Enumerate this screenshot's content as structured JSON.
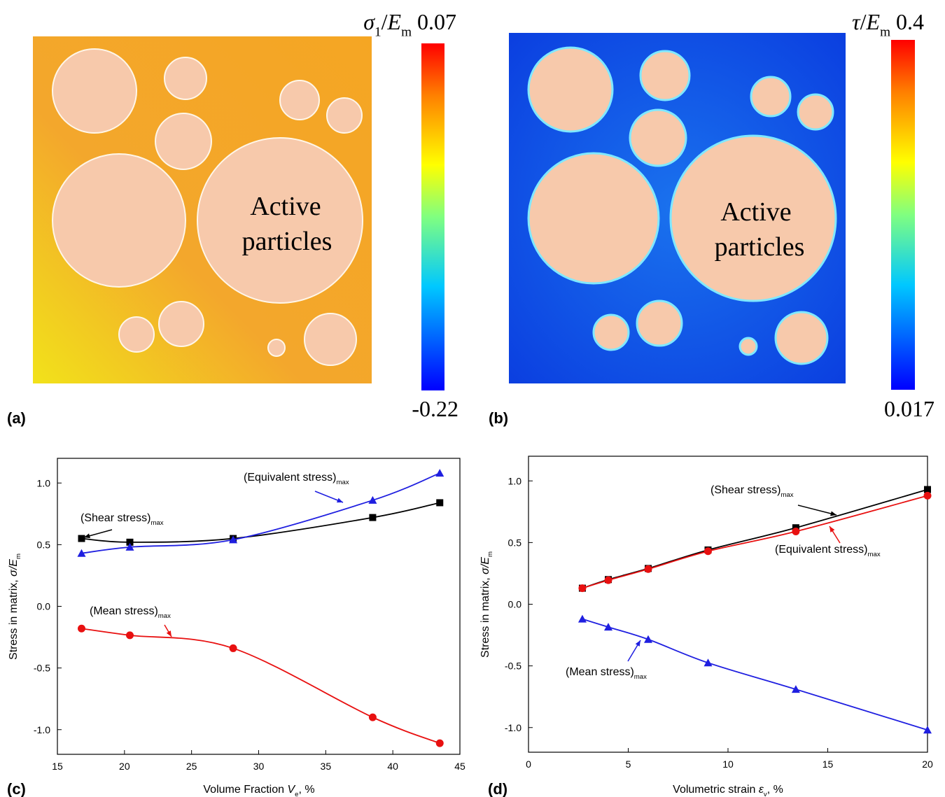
{
  "panels": [
    {
      "label": "(a)",
      "annotation": [
        "Active",
        "particles"
      ],
      "colorbar": {
        "title": [
          {
            "text": "σ",
            "italic": true
          },
          {
            "text": "1",
            "sub": true
          },
          {
            "text": "/"
          },
          {
            "text": "E",
            "italic": true
          },
          {
            "text": "m",
            "sub": true
          }
        ],
        "max": "0.07",
        "min": "-0.22"
      }
    },
    {
      "label": "(b)",
      "annotation": [
        "Active",
        "particles"
      ],
      "colorbar": {
        "title": [
          {
            "text": "τ",
            "italic": true
          },
          {
            "text": "/"
          },
          {
            "text": "E",
            "italic": true
          },
          {
            "text": "m",
            "sub": true
          }
        ],
        "max": "0.4",
        "min": "0.017"
      }
    }
  ],
  "chart_data": [
    {
      "type": "line",
      "panel_label": "(c)",
      "x_label": [
        {
          "text": "Volume Fraction "
        },
        {
          "text": "V",
          "italic": true
        },
        {
          "text": "e",
          "sub": true
        },
        {
          "text": ", %"
        }
      ],
      "y_label": [
        {
          "text": "Stress in matrix, "
        },
        {
          "text": "σ/E",
          "italic": true
        },
        {
          "text": "m",
          "sub": true
        }
      ],
      "xlim": [
        15,
        45
      ],
      "xticks": [
        15,
        20,
        25,
        30,
        35,
        40,
        45
      ],
      "ylim": [
        -1.2,
        1.2
      ],
      "yticks": [
        {
          "value": -1,
          "label": "-1.0"
        },
        {
          "value": -0.5,
          "label": "-0.5"
        },
        {
          "value": 0,
          "label": "0.0"
        },
        {
          "value": 0.5,
          "label": "0.5"
        },
        {
          "value": 1,
          "label": "1.0"
        }
      ],
      "series": [
        {
          "label": [
            {
              "text": "(Shear stress)"
            },
            {
              "text": "max",
              "sub": true
            }
          ],
          "color": "#000000",
          "marker": "square",
          "x": [
            16.8,
            20.4,
            28.1,
            38.5,
            43.5
          ],
          "values": [
            0.55,
            0.52,
            0.55,
            0.72,
            0.84
          ]
        },
        {
          "label": [
            {
              "text": "(Equivalent stress)"
            },
            {
              "text": "max",
              "sub": true
            }
          ],
          "color": "#1f1fe0",
          "marker": "triangle",
          "x": [
            16.8,
            20.4,
            28.1,
            38.5,
            43.5
          ],
          "values": [
            0.43,
            0.48,
            0.54,
            0.86,
            1.08
          ]
        },
        {
          "label": [
            {
              "text": "(Mean stress)"
            },
            {
              "text": "max",
              "sub": true
            }
          ],
          "color": "#e81010",
          "marker": "circle",
          "x": [
            16.8,
            20.4,
            28.1,
            38.5,
            43.5
          ],
          "values": [
            -0.18,
            -0.235,
            -0.34,
            -0.9,
            -1.11
          ]
        }
      ]
    },
    {
      "type": "line",
      "panel_label": "(d)",
      "x_label": [
        {
          "text": "Volumetric strain "
        },
        {
          "text": "ε",
          "italic": true
        },
        {
          "text": "v",
          "sub": true
        },
        {
          "text": ", %"
        }
      ],
      "y_label": [
        {
          "text": "Stress in matrix, "
        },
        {
          "text": "σ/E",
          "italic": true
        },
        {
          "text": "m",
          "sub": true
        }
      ],
      "xlim": [
        0,
        20
      ],
      "xticks": [
        0,
        5,
        10,
        15,
        20
      ],
      "ylim": [
        -1.2,
        1.2
      ],
      "yticks": [
        {
          "value": -1,
          "label": "-1.0"
        },
        {
          "value": -0.5,
          "label": "-0.5"
        },
        {
          "value": 0,
          "label": "0.0"
        },
        {
          "value": 0.5,
          "label": "0.5"
        },
        {
          "value": 1,
          "label": "1.0"
        }
      ],
      "series": [
        {
          "label": [
            {
              "text": "(Shear stress)"
            },
            {
              "text": "max",
              "sub": true
            }
          ],
          "color": "#000000",
          "marker": "square",
          "x": [
            2.7,
            4,
            6,
            9,
            13.4,
            20
          ],
          "values": [
            0.13,
            0.2,
            0.29,
            0.44,
            0.62,
            0.93
          ]
        },
        {
          "label": [
            {
              "text": "(Equivalent stress)"
            },
            {
              "text": "max",
              "sub": true
            }
          ],
          "color": "#e81010",
          "marker": "circle",
          "x": [
            2.7,
            4,
            6,
            9,
            13.4,
            20
          ],
          "values": [
            0.13,
            0.195,
            0.285,
            0.43,
            0.59,
            0.88
          ]
        },
        {
          "label": [
            {
              "text": "(Mean stress)"
            },
            {
              "text": "max",
              "sub": true
            }
          ],
          "color": "#1f1fe0",
          "marker": "triangle",
          "x": [
            2.7,
            4,
            6,
            9,
            13.4,
            20
          ],
          "values": [
            -0.12,
            -0.185,
            -0.285,
            -0.475,
            -0.69,
            -1.02
          ]
        }
      ]
    }
  ]
}
